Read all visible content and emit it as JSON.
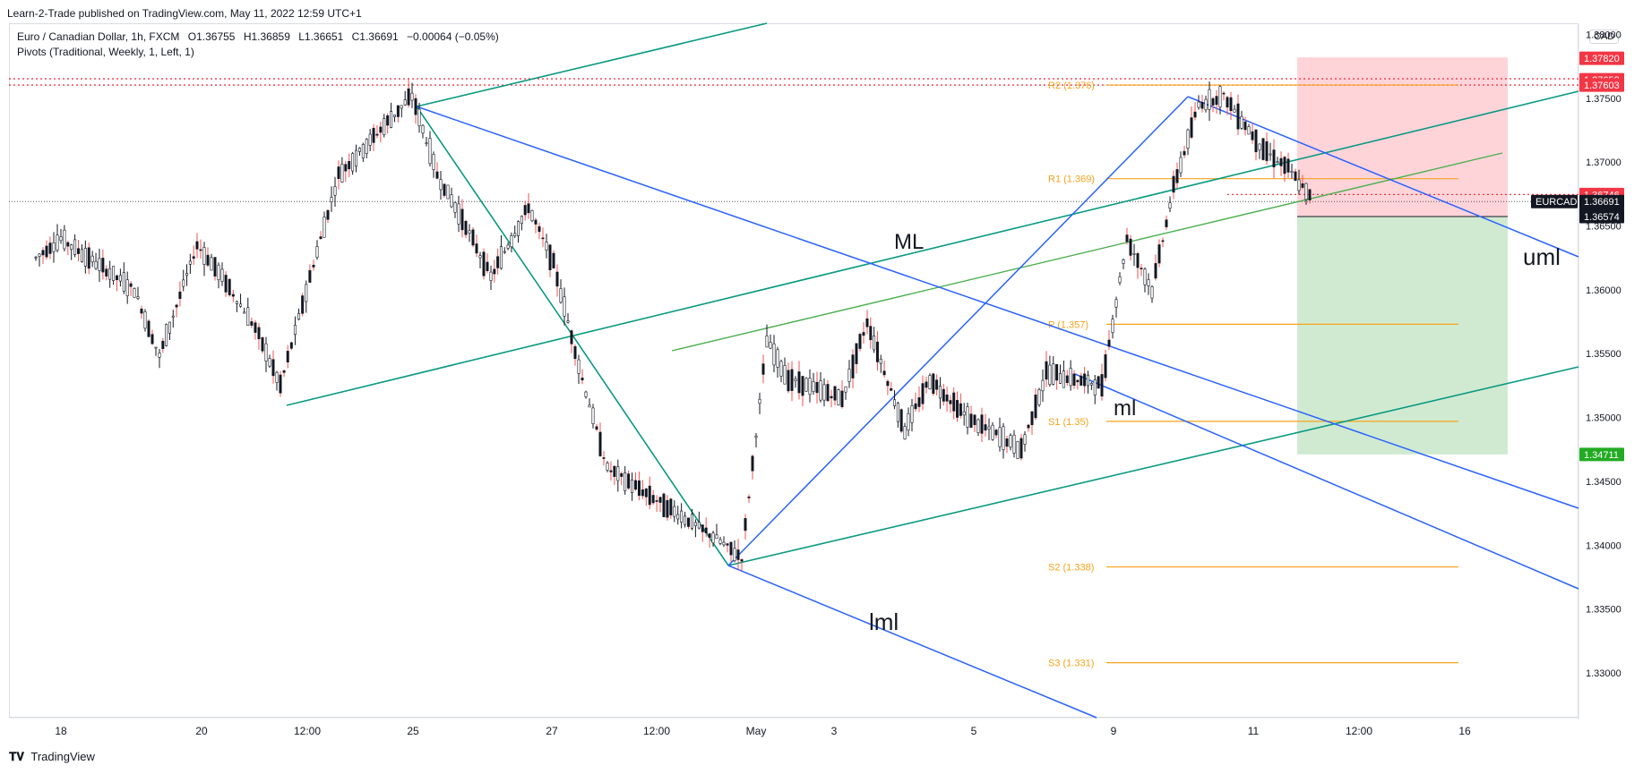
{
  "header": {
    "published": "Learn-2-Trade published on TradingView.com, May 11, 2022 12:59 UTC+1",
    "symbol_line": "Euro / Canadian Dollar, 1h, FXCM",
    "ohlc": {
      "o": "O1.36755",
      "h": "H1.36859",
      "l": "L1.36651",
      "c": "C1.36691",
      "chg": "−0.00064 (−0.05%)"
    },
    "indicator": "Pivots (Traditional, Weekly, 1, Left, 1)",
    "currency": "CAD",
    "footer": "TradingView"
  },
  "colors": {
    "up": "#26a69a",
    "down": "#ef5350",
    "candle": "#131722",
    "pivot": "#f7a21b",
    "blue_line": "#2962ff",
    "teal_line": "#089981",
    "green_line": "#4caf50",
    "red_dotted": "#f23645",
    "sl_zone": "#ffcdd2",
    "tp_zone": "#c8e6c9",
    "tag_red": "#f23645",
    "tag_black": "#131722",
    "tag_green": "#22ab22"
  },
  "chart_data": {
    "type": "candlestick",
    "title": "",
    "symbol": "EURCAD",
    "timeframe": "1h",
    "ylim": [
      1.3265,
      1.3808
    ],
    "y_ticks": [
      "1.38000",
      "1.37500",
      "1.37000",
      "1.36500",
      "1.36000",
      "1.35500",
      "1.35000",
      "1.34500",
      "1.34000",
      "1.33500",
      "1.33000"
    ],
    "x_ticks": [
      "18",
      "20",
      "12:00",
      "25",
      "27",
      "12:00",
      "May",
      "3",
      "5",
      "9",
      "11",
      "12:00",
      "16"
    ],
    "approx_path": [
      {
        "date": "Apr 18",
        "price": 1.3625
      },
      {
        "date": "Apr 18",
        "price": 1.364
      },
      {
        "date": "Apr 19",
        "price": 1.36
      },
      {
        "date": "Apr 19",
        "price": 1.3548
      },
      {
        "date": "Apr 20",
        "price": 1.3635
      },
      {
        "date": "Apr 20",
        "price": 1.361
      },
      {
        "date": "Apr 21",
        "price": 1.357
      },
      {
        "date": "Apr 21",
        "price": 1.3525
      },
      {
        "date": "Apr 22",
        "price": 1.362
      },
      {
        "date": "Apr 22",
        "price": 1.369
      },
      {
        "date": "Apr 25",
        "price": 1.3752
      },
      {
        "date": "Apr 25",
        "price": 1.369
      },
      {
        "date": "Apr 26",
        "price": 1.365
      },
      {
        "date": "Apr 26",
        "price": 1.361
      },
      {
        "date": "Apr 27",
        "price": 1.3665
      },
      {
        "date": "Apr 27",
        "price": 1.362
      },
      {
        "date": "Apr 28",
        "price": 1.353
      },
      {
        "date": "Apr 28",
        "price": 1.346
      },
      {
        "date": "Apr 29",
        "price": 1.3405
      },
      {
        "date": "Apr 29",
        "price": 1.339
      },
      {
        "date": "Apr 29",
        "price": 1.356
      },
      {
        "date": "May 2",
        "price": 1.353
      },
      {
        "date": "May 3",
        "price": 1.3515
      },
      {
        "date": "May 3",
        "price": 1.3575
      },
      {
        "date": "May 4",
        "price": 1.349
      },
      {
        "date": "May 4",
        "price": 1.353
      },
      {
        "date": "May 5",
        "price": 1.35
      },
      {
        "date": "May 6",
        "price": 1.3475
      },
      {
        "date": "May 6",
        "price": 1.3535
      },
      {
        "date": "May 9",
        "price": 1.3525
      },
      {
        "date": "May 9",
        "price": 1.364
      },
      {
        "date": "May 9",
        "price": 1.36
      },
      {
        "date": "May 10",
        "price": 1.368
      },
      {
        "date": "May 10",
        "price": 1.3745
      },
      {
        "date": "May 10",
        "price": 1.3752
      },
      {
        "date": "May 11",
        "price": 1.371
      },
      {
        "date": "May 11",
        "price": 1.3695
      },
      {
        "date": "May 11",
        "price": 1.3669
      }
    ],
    "pivots": [
      {
        "label": "R2 (1.376)",
        "value": 1.37603
      },
      {
        "label": "R1 (1.369)",
        "value": 1.3687
      },
      {
        "label": "P (1.357)",
        "value": 1.3573
      },
      {
        "label": "S1 (1.35)",
        "value": 1.3497
      },
      {
        "label": "S2 (1.338)",
        "value": 1.3383
      },
      {
        "label": "S3 (1.331)",
        "value": 1.3308
      }
    ],
    "price_tags": [
      {
        "text": "1.37820",
        "value": 1.3782,
        "kind": "red"
      },
      {
        "text": "1.37652",
        "value": 1.37652,
        "kind": "red"
      },
      {
        "text": "1.37603",
        "value": 1.37603,
        "kind": "red"
      },
      {
        "text": "1.36746",
        "value": 1.36746,
        "kind": "red"
      },
      {
        "text": "EURCAD",
        "value": 1.36691,
        "kind": "symbol"
      },
      {
        "text": "1.36691",
        "value": 1.36691,
        "kind": "black"
      },
      {
        "text": "00:56",
        "value": 1.3659,
        "kind": "black-small"
      },
      {
        "text": "1.36574",
        "value": 1.36574,
        "kind": "black"
      },
      {
        "text": "1.34711",
        "value": 1.34711,
        "kind": "green"
      }
    ],
    "position": {
      "type": "short",
      "entry": 1.36574,
      "stop": 1.3782,
      "target": 1.34711
    },
    "annotations": [
      "ML",
      "ml",
      "uml",
      "lml"
    ],
    "grid": false,
    "legend": "top-left"
  }
}
